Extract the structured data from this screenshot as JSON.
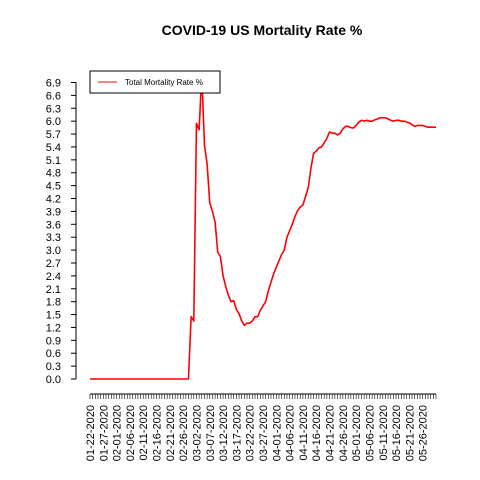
{
  "chart_data": {
    "type": "line",
    "title": "COVID-19 US Mortality Rate %",
    "xlabel": "",
    "ylabel": "",
    "x_start": "2020-01-22",
    "x_end": "2020-05-31",
    "x_ticklabels": [
      "01-22-2020",
      "01-27-2020",
      "02-01-2020",
      "02-06-2020",
      "02-11-2020",
      "02-16-2020",
      "02-21-2020",
      "02-26-2020",
      "03-02-2020",
      "03-07-2020",
      "03-12-2020",
      "03-17-2020",
      "03-22-2020",
      "03-27-2020",
      "04-01-2020",
      "04-06-2020",
      "04-11-2020",
      "04-16-2020",
      "04-21-2020",
      "04-26-2020",
      "05-01-2020",
      "05-06-2020",
      "05-11-2020",
      "05-16-2020",
      "05-21-2020",
      "05-26-2020"
    ],
    "y_ticks": [
      "0.0",
      "0.3",
      "0.6",
      "0.9",
      "1.2",
      "1.5",
      "1.8",
      "2.1",
      "2.4",
      "2.7",
      "3.0",
      "3.3",
      "3.6",
      "3.9",
      "4.2",
      "4.5",
      "4.8",
      "5.1",
      "5.4",
      "5.7",
      "6.0",
      "6.3",
      "6.6",
      "6.9"
    ],
    "ylim": [
      0,
      7.0
    ],
    "grid": false,
    "legend": {
      "position": "top-left",
      "entries": [
        "Total Mortality Rate %"
      ]
    },
    "series": [
      {
        "name": "Total Mortality Rate %",
        "color": "#ff0000",
        "x": [
          "2020-01-22",
          "2020-02-28",
          "2020-02-29",
          "2020-03-01",
          "2020-03-02",
          "2020-03-03",
          "2020-03-04",
          "2020-03-05",
          "2020-03-06",
          "2020-03-07",
          "2020-03-08",
          "2020-03-09",
          "2020-03-10",
          "2020-03-11",
          "2020-03-12",
          "2020-03-13",
          "2020-03-14",
          "2020-03-15",
          "2020-03-16",
          "2020-03-17",
          "2020-03-18",
          "2020-03-19",
          "2020-03-20",
          "2020-03-21",
          "2020-03-22",
          "2020-03-23",
          "2020-03-24",
          "2020-03-25",
          "2020-03-26",
          "2020-03-27",
          "2020-03-28",
          "2020-03-29",
          "2020-03-30",
          "2020-03-31",
          "2020-04-01",
          "2020-04-02",
          "2020-04-03",
          "2020-04-04",
          "2020-04-05",
          "2020-04-06",
          "2020-04-07",
          "2020-04-08",
          "2020-04-09",
          "2020-04-10",
          "2020-04-11",
          "2020-04-12",
          "2020-04-13",
          "2020-04-14",
          "2020-04-15",
          "2020-04-16",
          "2020-04-17",
          "2020-04-18",
          "2020-04-19",
          "2020-04-20",
          "2020-04-21",
          "2020-04-22",
          "2020-04-23",
          "2020-04-24",
          "2020-04-25",
          "2020-04-26",
          "2020-04-27",
          "2020-04-28",
          "2020-04-29",
          "2020-04-30",
          "2020-05-01",
          "2020-05-02",
          "2020-05-03",
          "2020-05-04",
          "2020-05-05",
          "2020-05-06",
          "2020-05-07",
          "2020-05-08",
          "2020-05-09",
          "2020-05-10",
          "2020-05-11",
          "2020-05-12",
          "2020-05-13",
          "2020-05-14",
          "2020-05-15",
          "2020-05-16",
          "2020-05-17",
          "2020-05-18",
          "2020-05-19",
          "2020-05-20",
          "2020-05-21",
          "2020-05-22",
          "2020-05-23",
          "2020-05-24",
          "2020-05-25",
          "2020-05-26",
          "2020-05-27",
          "2020-05-28",
          "2020-05-29",
          "2020-05-30",
          "2020-05-31"
        ],
        "y": [
          0.0,
          0.0,
          1.45,
          1.35,
          5.95,
          5.8,
          7.1,
          5.45,
          5.0,
          4.1,
          3.9,
          3.65,
          2.95,
          2.85,
          2.4,
          2.15,
          1.95,
          1.8,
          1.82,
          1.62,
          1.52,
          1.35,
          1.25,
          1.3,
          1.3,
          1.35,
          1.45,
          1.45,
          1.6,
          1.7,
          1.8,
          2.05,
          2.25,
          2.45,
          2.6,
          2.75,
          2.9,
          3.0,
          3.3,
          3.45,
          3.6,
          3.78,
          3.92,
          4.0,
          4.05,
          4.25,
          4.45,
          4.9,
          5.25,
          5.3,
          5.38,
          5.4,
          5.5,
          5.6,
          5.75,
          5.72,
          5.72,
          5.68,
          5.72,
          5.82,
          5.88,
          5.88,
          5.85,
          5.84,
          5.9,
          5.98,
          6.02,
          6.0,
          6.02,
          6.0,
          6.0,
          6.03,
          6.05,
          6.08,
          6.08,
          6.08,
          6.05,
          6.02,
          6.0,
          6.02,
          6.02,
          6.0,
          6.0,
          5.98,
          5.96,
          5.92,
          5.88,
          5.9,
          5.9,
          5.9,
          5.88,
          5.86,
          5.86,
          5.86,
          5.86
        ]
      }
    ]
  }
}
